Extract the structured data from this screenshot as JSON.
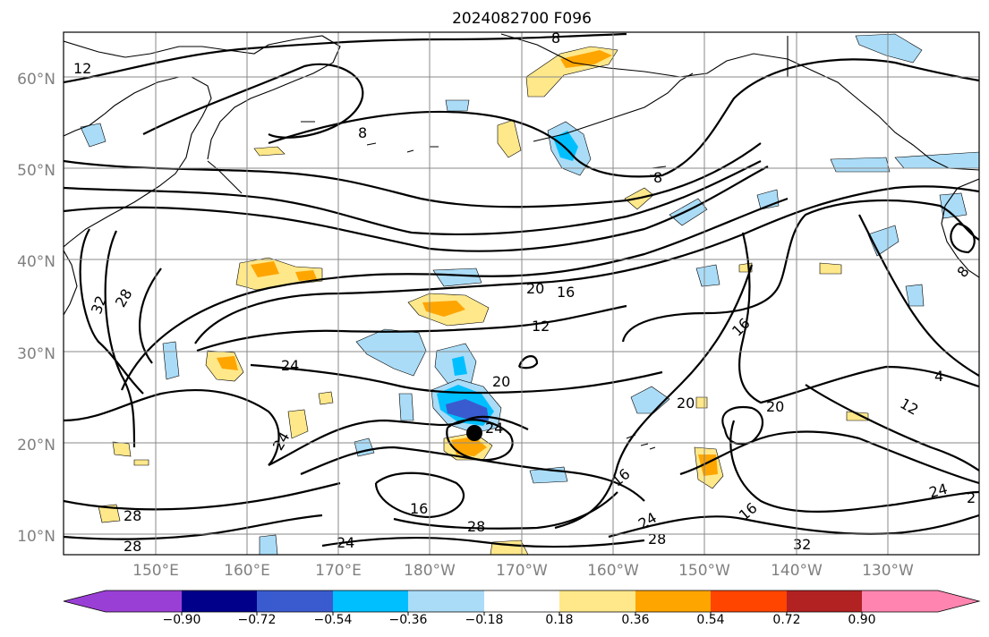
{
  "title": "2024082700 F096",
  "lat_labels": [
    "60°N",
    "50°N",
    "40°N",
    "30°N",
    "20°N",
    "10°N"
  ],
  "lon_labels": [
    "150°E",
    "160°E",
    "170°E",
    "180°W",
    "170°W",
    "160°W",
    "150°W",
    "140°W",
    "130°W"
  ],
  "colorbar": {
    "tick_labels": [
      "−0.90",
      "−0.72",
      "−0.54",
      "−0.36",
      "−0.18",
      "0.18",
      "0.36",
      "0.54",
      "0.72",
      "0.90"
    ],
    "colors": [
      "#9a3fd6",
      "#00008b",
      "#3a5bd0",
      "#00bfff",
      "#aadcf7",
      "#ffffff",
      "#ffe88a",
      "#ffa500",
      "#ff4500",
      "#b22222",
      "#ff85b0"
    ]
  },
  "contour_labels": [
    "12",
    "8",
    "8",
    "8",
    "32",
    "28",
    "20",
    "16",
    "12",
    "24",
    "20",
    "24",
    "20",
    "16",
    "20",
    "4",
    "12",
    "24",
    "16",
    "28",
    "28",
    "24",
    "16",
    "24",
    "16",
    "28",
    "32",
    "24",
    "2",
    "28",
    "8"
  ],
  "marker": "storm-center"
}
